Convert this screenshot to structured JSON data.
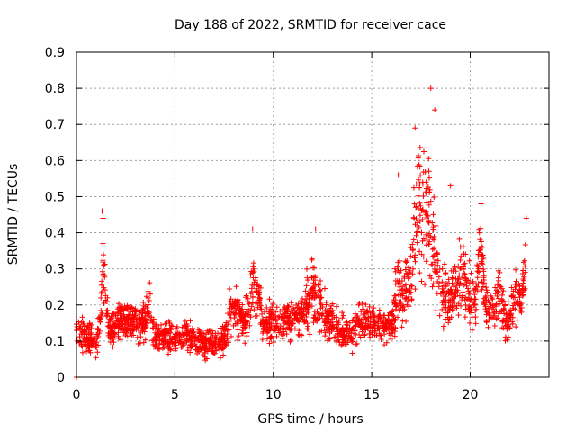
{
  "chart_data": {
    "type": "scatter",
    "title": "Day 188 of 2022, SRMTID for receiver cace",
    "xlabel": "GPS time / hours",
    "ylabel": "SRMTID / TECUs",
    "xlim": [
      0,
      24
    ],
    "ylim": [
      0,
      0.9
    ],
    "xticks": [
      0,
      5,
      10,
      15,
      20
    ],
    "xtick_labels": [
      "0",
      "5",
      "10",
      "15",
      "20"
    ],
    "yticks": [
      0,
      0.1,
      0.2,
      0.3,
      0.4,
      0.5,
      0.6,
      0.7,
      0.8,
      0.9
    ],
    "ytick_labels": [
      "0",
      "0.1",
      "0.2",
      "0.3",
      "0.4",
      "0.5",
      "0.6",
      "0.7",
      "0.8",
      "0.9"
    ],
    "grid": true,
    "marker": "+",
    "marker_color": "#ff0000",
    "series_profile": {
      "name": "SRMTID",
      "x": [
        0.0,
        0.5,
        1.0,
        1.2,
        1.35,
        1.5,
        1.7,
        2.0,
        2.5,
        3.0,
        3.5,
        3.7,
        4.0,
        4.5,
        5.0,
        5.5,
        6.0,
        6.5,
        7.0,
        7.5,
        8.0,
        8.3,
        8.7,
        9.0,
        9.5,
        10.0,
        10.5,
        11.0,
        11.5,
        12.0,
        12.3,
        12.7,
        13.0,
        13.5,
        14.0,
        14.5,
        15.0,
        15.5,
        16.0,
        16.3,
        16.6,
        17.0,
        17.3,
        17.6,
        17.9,
        18.2,
        18.5,
        18.8,
        19.0,
        19.3,
        19.6,
        20.0,
        20.3,
        20.5,
        20.8,
        21.0,
        21.3,
        21.5,
        21.8,
        22.0,
        22.3,
        22.6,
        22.8
      ],
      "center": [
        0.13,
        0.11,
        0.1,
        0.14,
        0.33,
        0.2,
        0.13,
        0.15,
        0.16,
        0.15,
        0.16,
        0.2,
        0.11,
        0.11,
        0.11,
        0.12,
        0.1,
        0.09,
        0.09,
        0.1,
        0.2,
        0.16,
        0.17,
        0.28,
        0.15,
        0.15,
        0.15,
        0.17,
        0.17,
        0.25,
        0.2,
        0.16,
        0.15,
        0.12,
        0.12,
        0.16,
        0.16,
        0.14,
        0.15,
        0.25,
        0.22,
        0.3,
        0.45,
        0.5,
        0.45,
        0.33,
        0.25,
        0.2,
        0.22,
        0.25,
        0.28,
        0.22,
        0.2,
        0.38,
        0.2,
        0.18,
        0.2,
        0.25,
        0.16,
        0.16,
        0.22,
        0.2,
        0.3
      ],
      "spread": [
        0.04,
        0.04,
        0.04,
        0.05,
        0.1,
        0.07,
        0.04,
        0.05,
        0.05,
        0.05,
        0.05,
        0.06,
        0.04,
        0.04,
        0.04,
        0.04,
        0.04,
        0.04,
        0.04,
        0.04,
        0.07,
        0.05,
        0.06,
        0.1,
        0.05,
        0.05,
        0.05,
        0.05,
        0.06,
        0.1,
        0.07,
        0.05,
        0.05,
        0.04,
        0.04,
        0.05,
        0.05,
        0.04,
        0.05,
        0.09,
        0.08,
        0.1,
        0.15,
        0.18,
        0.15,
        0.12,
        0.1,
        0.07,
        0.07,
        0.09,
        0.1,
        0.07,
        0.07,
        0.1,
        0.06,
        0.06,
        0.07,
        0.08,
        0.06,
        0.06,
        0.08,
        0.07,
        0.1
      ],
      "highlights": [
        [
          0.0,
          0.0
        ],
        [
          1.3,
          0.46
        ],
        [
          1.35,
          0.44
        ],
        [
          8.95,
          0.41
        ],
        [
          12.15,
          0.41
        ],
        [
          18.0,
          0.8
        ],
        [
          18.2,
          0.74
        ],
        [
          19.0,
          0.53
        ],
        [
          20.55,
          0.48
        ],
        [
          22.85,
          0.44
        ],
        [
          16.35,
          0.56
        ],
        [
          17.2,
          0.69
        ]
      ]
    }
  }
}
